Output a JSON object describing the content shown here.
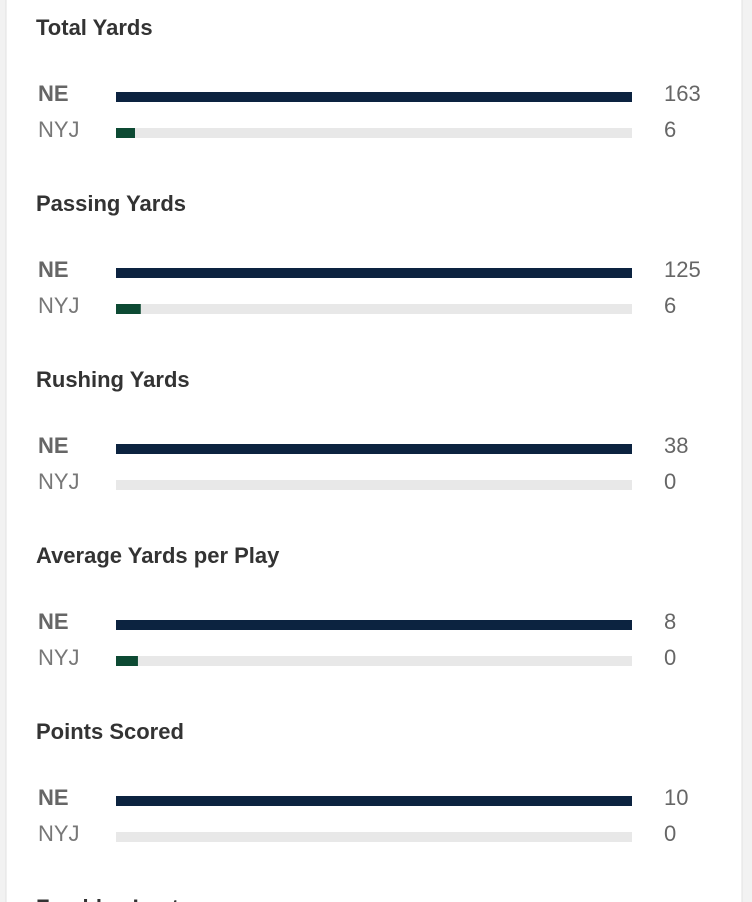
{
  "stats": [
    {
      "title": "Total Yards",
      "teams": [
        "NE",
        "NYJ"
      ],
      "values": [
        163,
        6
      ]
    },
    {
      "title": "Passing Yards",
      "teams": [
        "NE",
        "NYJ"
      ],
      "values": [
        125,
        6
      ]
    },
    {
      "title": "Rushing Yards",
      "teams": [
        "NE",
        "NYJ"
      ],
      "values": [
        38,
        0
      ]
    },
    {
      "title": "Average Yards per Play",
      "teams": [
        "NE",
        "NYJ"
      ],
      "values": [
        8,
        0.34
      ],
      "value_labels": [
        "8",
        "0"
      ]
    },
    {
      "title": "Points Scored",
      "teams": [
        "NE",
        "NYJ"
      ],
      "values": [
        10,
        0
      ]
    },
    {
      "title": "Fumbles Lost"
    }
  ],
  "colors": [
    "#0c2340",
    "#0d4a33"
  ]
}
